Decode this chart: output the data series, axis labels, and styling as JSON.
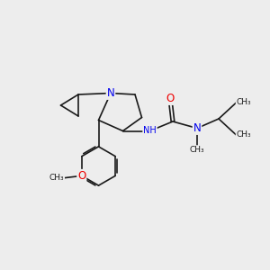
{
  "background_color": "#EDEDED",
  "bond_color": "#1a1a1a",
  "bond_width": 1.2,
  "atom_colors": {
    "N": "#0000EE",
    "O": "#EE0000",
    "C": "#1a1a1a",
    "H": "#6a8a8a"
  },
  "figsize": [
    3.0,
    3.0
  ],
  "dpi": 100,
  "xlim": [
    0.0,
    10.0
  ],
  "ylim": [
    0.5,
    8.5
  ]
}
